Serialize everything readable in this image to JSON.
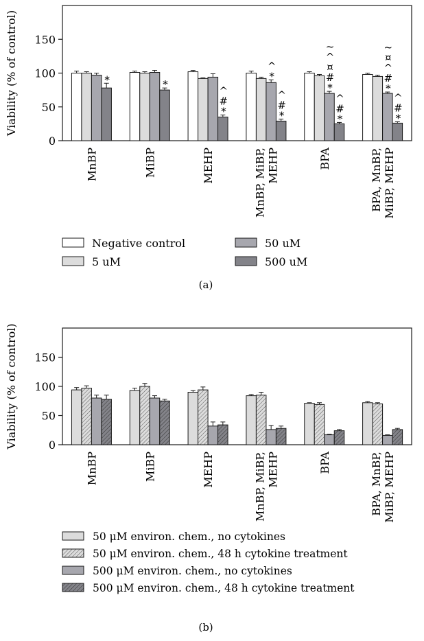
{
  "colors": {
    "negative_control": "#ffffff",
    "light_gray": "#dcdcdc",
    "mid_gray": "#a7a7ae",
    "dark_gray": "#838389",
    "axis": "#1a1a1a"
  },
  "chart_data": [
    {
      "type": "bar",
      "panel_label": "(a)",
      "ylabel": "Viability (% of control)",
      "ylim": [
        0,
        200
      ],
      "yticks": [
        "0",
        "50",
        "100",
        "150"
      ],
      "ytick_values": [
        0,
        50,
        100,
        150
      ],
      "categories": [
        "MnBP",
        "MiBP",
        "MEHP",
        "MnBP, MiBP,\nMEHP",
        "BPA",
        "BPA, MnBP,\nMiBP, MEHP"
      ],
      "series": [
        {
          "name": "Negative control",
          "values": [
            100,
            101,
            102,
            100,
            100,
            98
          ],
          "errors": [
            3,
            2,
            2,
            3,
            2,
            2
          ],
          "fill": "#ffffff",
          "pattern": "none"
        },
        {
          "name": "5 uM",
          "values": [
            100,
            100,
            92,
            92,
            96,
            95
          ],
          "errors": [
            2,
            2,
            1,
            2,
            2,
            2
          ],
          "fill": "#dcdcdc",
          "pattern": "none"
        },
        {
          "name": "50 uM",
          "values": [
            97,
            101,
            94,
            86,
            70,
            70
          ],
          "errors": [
            3,
            3,
            5,
            4,
            3,
            2
          ],
          "fill": "#a7a7ae",
          "pattern": "none"
        },
        {
          "name": "500 uM",
          "values": [
            78,
            75,
            35,
            29,
            25,
            26
          ],
          "errors": [
            7,
            3,
            3,
            3,
            2,
            2
          ],
          "fill": "#838389",
          "pattern": "none"
        }
      ],
      "annotations": [
        {
          "category": 0,
          "series": 3,
          "text": "*"
        },
        {
          "category": 1,
          "series": 3,
          "text": "*"
        },
        {
          "category": 2,
          "series": 3,
          "text": "*\n#\n^"
        },
        {
          "category": 3,
          "series": 2,
          "text": "*\n^"
        },
        {
          "category": 3,
          "series": 3,
          "text": "*\n#\n^"
        },
        {
          "category": 4,
          "series": 2,
          "text": "*\n#\n¤\n^\n~"
        },
        {
          "category": 4,
          "series": 3,
          "text": "*\n#\n^"
        },
        {
          "category": 5,
          "series": 2,
          "text": "*\n#\n^\n¤\n~"
        },
        {
          "category": 5,
          "series": 3,
          "text": "*\n#\n^"
        }
      ],
      "legend": {
        "placement": "bottom",
        "entries": [
          "Negative control",
          "50 uM",
          "5 uM",
          "500 uM"
        ]
      }
    },
    {
      "type": "bar",
      "panel_label": "(b)",
      "ylabel": "Viability (% of control)",
      "ylim": [
        0,
        200
      ],
      "yticks": [
        "0",
        "50",
        "100",
        "150"
      ],
      "ytick_values": [
        0,
        50,
        100,
        150
      ],
      "categories": [
        "MnBP",
        "MiBP",
        "MEHP",
        "MnBP, MiBP,\nMEHP",
        "BPA",
        "BPA, MnBP,\nMiBP, MEHP"
      ],
      "series": [
        {
          "name": "50 μM environ. chem., no cytokines",
          "values": [
            94,
            93,
            90,
            84,
            71,
            72
          ],
          "errors": [
            4,
            4,
            3,
            2,
            1,
            2
          ],
          "fill": "#dcdcdc",
          "pattern": "none"
        },
        {
          "name": "50 μM environ. chem., 48 h cytokine treatment",
          "values": [
            97,
            100,
            94,
            85,
            69,
            70
          ],
          "errors": [
            4,
            5,
            5,
            5,
            3,
            2
          ],
          "fill": "#dcdcdc",
          "pattern": "hatch"
        },
        {
          "name": "500 μM environ. chem., no cytokines",
          "values": [
            80,
            80,
            32,
            26,
            17,
            16
          ],
          "errors": [
            5,
            4,
            7,
            7,
            1,
            1
          ],
          "fill": "#a7a7ae",
          "pattern": "none"
        },
        {
          "name": "500 μM environ. chem., 48 h cytokine treatment",
          "values": [
            78,
            75,
            34,
            28,
            24,
            26
          ],
          "errors": [
            7,
            3,
            5,
            4,
            2,
            2
          ],
          "fill": "#838389",
          "pattern": "hatch"
        }
      ],
      "legend": {
        "placement": "bottom",
        "entries": [
          "50 μM environ. chem., no cytokines",
          "50 μM environ. chem., 48 h cytokine treatment",
          "500 μM environ. chem., no cytokines",
          "500 μM environ. chem., 48 h cytokine treatment"
        ]
      }
    }
  ]
}
